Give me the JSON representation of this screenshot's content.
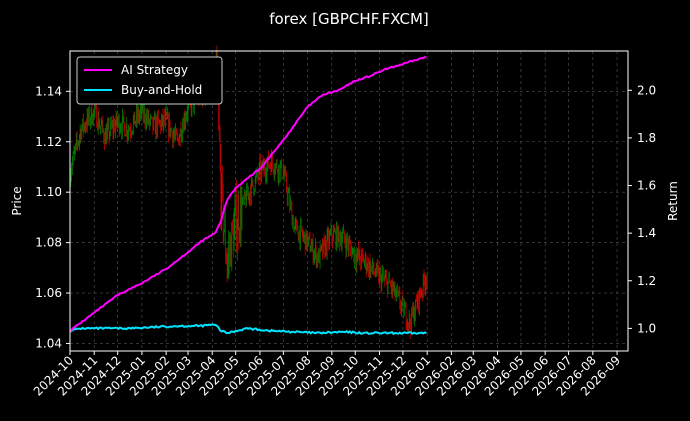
{
  "chart_data": {
    "type": "line",
    "title": "forex [GBPCHF.FXCM]",
    "xlabel": "",
    "ylabel_left": "Price",
    "ylabel_right": "Return",
    "x_ticks": [
      "2024-10",
      "2024-11",
      "2024-12",
      "2025-01",
      "2025-02",
      "2025-03",
      "2025-04",
      "2025-05",
      "2025-06",
      "2025-07",
      "2025-08",
      "2025-09",
      "2025-10",
      "2025-11",
      "2025-12",
      "2026-01",
      "2026-02",
      "2026-03",
      "2026-04",
      "2026-05",
      "2026-06",
      "2026-07",
      "2026-08",
      "2026-09"
    ],
    "xlim": [
      "2024-10-01",
      "2026-09-15"
    ],
    "ylim_left": [
      1.037,
      1.156
    ],
    "ylim_right": [
      0.905,
      2.165
    ],
    "y_ticks_left": [
      "1.04",
      "1.06",
      "1.08",
      "1.10",
      "1.12",
      "1.14"
    ],
    "y_ticks_right": [
      "1.0",
      "1.2",
      "1.4",
      "1.6",
      "1.8",
      "2.0"
    ],
    "grid": true,
    "legend_position": "top-left",
    "colors": {
      "up": "#c00000",
      "down": "#008000",
      "ai": "#ff00ff",
      "bh": "#00e5ff"
    },
    "price_series": {
      "name": "GBPCHF price",
      "x": [
        "2024-10-01",
        "2024-10-15",
        "2024-11-01",
        "2024-11-15",
        "2024-12-01",
        "2024-12-15",
        "2025-01-01",
        "2025-01-15",
        "2025-02-01",
        "2025-02-15",
        "2025-03-01",
        "2025-03-15",
        "2025-04-01",
        "2025-04-07",
        "2025-04-12",
        "2025-04-20",
        "2025-05-01",
        "2025-05-15",
        "2025-06-01",
        "2025-06-15",
        "2025-07-01",
        "2025-07-15",
        "2025-08-01",
        "2025-08-15",
        "2025-09-01",
        "2025-09-15",
        "2025-10-01",
        "2025-10-15",
        "2025-11-01",
        "2025-11-15",
        "2025-12-01",
        "2025-12-10",
        "2025-12-20",
        "2026-01-01"
      ],
      "values": [
        1.108,
        1.125,
        1.132,
        1.122,
        1.128,
        1.125,
        1.132,
        1.126,
        1.128,
        1.12,
        1.134,
        1.138,
        1.141,
        1.146,
        1.1,
        1.072,
        1.088,
        1.098,
        1.108,
        1.112,
        1.108,
        1.086,
        1.08,
        1.074,
        1.083,
        1.082,
        1.075,
        1.072,
        1.066,
        1.063,
        1.054,
        1.048,
        1.057,
        1.068
      ]
    },
    "series": [
      {
        "name": "AI Strategy",
        "x": [
          "2024-10-01",
          "2024-11-15",
          "2024-12-01",
          "2025-01-01",
          "2025-02-01",
          "2025-03-01",
          "2025-03-20",
          "2025-04-05",
          "2025-04-12",
          "2025-04-20",
          "2025-05-01",
          "2025-05-20",
          "2025-06-01",
          "2025-07-01",
          "2025-08-01",
          "2025-08-20",
          "2025-09-10",
          "2025-10-01",
          "2025-10-20",
          "2025-11-10",
          "2025-12-01",
          "2025-12-20",
          "2026-01-01"
        ],
        "values": [
          0.99,
          1.1,
          1.14,
          1.19,
          1.25,
          1.32,
          1.37,
          1.4,
          1.45,
          1.54,
          1.59,
          1.64,
          1.67,
          1.79,
          1.93,
          1.98,
          2.0,
          2.04,
          2.06,
          2.09,
          2.11,
          2.13,
          2.14
        ]
      },
      {
        "name": "Buy-and-Hold",
        "x": [
          "2024-10-01",
          "2024-10-15",
          "2024-11-15",
          "2024-12-15",
          "2025-01-15",
          "2025-02-15",
          "2025-03-15",
          "2025-04-01",
          "2025-04-07",
          "2025-04-12",
          "2025-04-20",
          "2025-05-15",
          "2025-06-15",
          "2025-07-15",
          "2025-08-15",
          "2025-09-15",
          "2025-10-15",
          "2025-11-15",
          "2025-12-15",
          "2026-01-01"
        ],
        "values": [
          0.99,
          1.0,
          1.0,
          1.0,
          1.005,
          1.01,
          1.01,
          1.015,
          1.01,
          0.99,
          0.98,
          1.0,
          0.99,
          0.985,
          0.98,
          0.985,
          0.98,
          0.98,
          0.98,
          0.98
        ]
      }
    ]
  }
}
